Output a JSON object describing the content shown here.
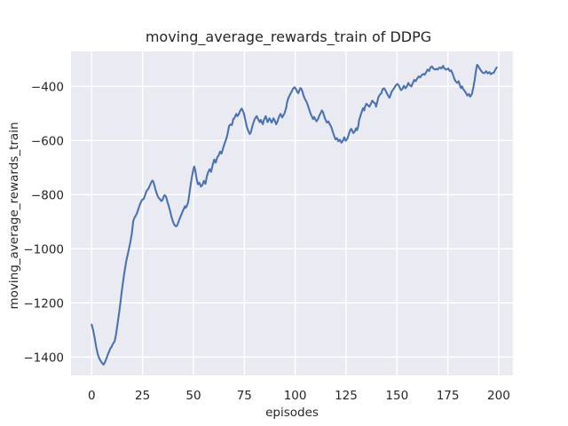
{
  "chart_data": {
    "type": "line",
    "title": "moving_average_rewards_train of DDPG",
    "xlabel": "episodes",
    "ylabel": "moving_average_rewards_train",
    "x_ticks": [
      0,
      25,
      50,
      75,
      100,
      125,
      150,
      175,
      200
    ],
    "x_tick_labels": [
      "0",
      "25",
      "50",
      "75",
      "100",
      "125",
      "150",
      "175",
      "200"
    ],
    "y_ticks": [
      -1400,
      -1200,
      -1000,
      -800,
      -600,
      -400
    ],
    "y_tick_labels": [
      "−1400",
      "−1200",
      "−1000",
      "−800",
      "−600",
      "−400"
    ],
    "xlim": [
      -10.16,
      207.0
    ],
    "ylim": [
      -1468,
      -271
    ],
    "grid": true,
    "legend": null,
    "series": [
      {
        "x": [
          0,
          0.7,
          1.5,
          2.2,
          3,
          3.7,
          4.4,
          5.1,
          5.8,
          6.5,
          7.3,
          8,
          8.7,
          9.2,
          9.8,
          10.2,
          10.9,
          11.3,
          12,
          12.8,
          13.7,
          14.9,
          15.9,
          16.9,
          18.1,
          19,
          19.8,
          20.4,
          21.1,
          21.8,
          22.6,
          23.3,
          24,
          24.7,
          25.5,
          26.2,
          26.9,
          27.7,
          28.4,
          28.8,
          29.4,
          29.8,
          30.3,
          30.8,
          31.3,
          32,
          32.7,
          33.5,
          34.2,
          34.9,
          35.3,
          35.8,
          36.4,
          36.8,
          37.1,
          37.8,
          38.6,
          39.3,
          40,
          40.7,
          41.4,
          41.9,
          42.5,
          42.9,
          43.6,
          44.4,
          44.8,
          45.4,
          45.8,
          46.2,
          46.8,
          47.3,
          47.7,
          48,
          48.4,
          48.7,
          49.2,
          49.6,
          50,
          50.4,
          50.9,
          51.5,
          52.2,
          52.9,
          53.7,
          54.4,
          55.1,
          55.9,
          56.6,
          57.3,
          58,
          58.7,
          59.5,
          60.2,
          60.9,
          61.7,
          62.4,
          63.1,
          63.8,
          64.6,
          65.3,
          66,
          66.7,
          67.5,
          68.2,
          68.9,
          69.6,
          70.1,
          70.7,
          71.1,
          71.6,
          72.2,
          72.9,
          73.7,
          74.2,
          74.8,
          75.3,
          75.8,
          76.2,
          76.8,
          77.7,
          78.3,
          78.7,
          79.1,
          79.7,
          80.1,
          80.6,
          81.1,
          81.6,
          82,
          82.6,
          83.1,
          83.5,
          84.1,
          84.5,
          85,
          85.5,
          86,
          86.4,
          87,
          87.4,
          87.9,
          88.4,
          88.9,
          89.3,
          89.9,
          90.3,
          90.7,
          91.3,
          91.8,
          92.2,
          92.8,
          93.2,
          93.6,
          94.2,
          94.7,
          95.1,
          95.6,
          96,
          96.7,
          97.4,
          98.2,
          98.9,
          99.6,
          100.3,
          101,
          101.5,
          102.1,
          102.5,
          103,
          103.6,
          104.1,
          104.7,
          105.5,
          106.2,
          106.9,
          107.6,
          108.3,
          108.8,
          109.3,
          109.8,
          110.5,
          111.2,
          111.9,
          112.7,
          113.1,
          113.7,
          114.1,
          114.9,
          115.6,
          116.3,
          117,
          117.8,
          118.5,
          119,
          119.8,
          120.5,
          121.2,
          121.9,
          122.7,
          123.4,
          124.1,
          124.8,
          125.6,
          126.3,
          127,
          127.5,
          128,
          128.5,
          129.2,
          129.9,
          130.4,
          131,
          131.4,
          132.1,
          132.8,
          133.3,
          133.9,
          134.3,
          135,
          135.8,
          136.5,
          137.2,
          137.9,
          138.6,
          139.4,
          139.7,
          140.1,
          140.8,
          141.5,
          142.3,
          143,
          143.7,
          144.4,
          145.1,
          145.9,
          146.3,
          146.9,
          147.3,
          148,
          148.8,
          149.5,
          150.2,
          151,
          151.5,
          152,
          152.7,
          153.4,
          154.2,
          154.9,
          155.6,
          156.3,
          157.1,
          157.8,
          158.5,
          159.2,
          160,
          160.7,
          161.4,
          162.1,
          162.9,
          163.6,
          164.3,
          165,
          165.8,
          166.5,
          167.2,
          167.9,
          168.7,
          169.4,
          170,
          170.6,
          171.2,
          171.8,
          172.7,
          173.2,
          174.1,
          175.2,
          175.9,
          176.6,
          177.4,
          178.1,
          178.8,
          179.6,
          180.3,
          181,
          181.4,
          182,
          182.4,
          183.2,
          183.9,
          184.6,
          185.3,
          186,
          186.8,
          187.5,
          188.2,
          188.8,
          189.4,
          190,
          190.7,
          191.5,
          192.2,
          193,
          193.8,
          194.6,
          195.4,
          196.1,
          196.8,
          197.6,
          198.2,
          199
        ],
        "y": [
          -1280,
          -1300,
          -1330,
          -1362,
          -1390,
          -1405,
          -1415,
          -1422,
          -1428,
          -1420,
          -1405,
          -1390,
          -1377,
          -1368,
          -1362,
          -1355,
          -1346,
          -1342,
          -1315,
          -1272,
          -1225,
          -1150,
          -1095,
          -1048,
          -1008,
          -975,
          -940,
          -898,
          -884,
          -876,
          -862,
          -845,
          -831,
          -820,
          -816,
          -803,
          -787,
          -780,
          -770,
          -763,
          -753,
          -748,
          -752,
          -765,
          -780,
          -797,
          -810,
          -816,
          -824,
          -819,
          -808,
          -802,
          -806,
          -814,
          -824,
          -841,
          -862,
          -884,
          -901,
          -912,
          -917,
          -915,
          -904,
          -895,
          -882,
          -868,
          -860,
          -851,
          -843,
          -849,
          -841,
          -830,
          -813,
          -797,
          -775,
          -759,
          -737,
          -722,
          -706,
          -696,
          -710,
          -738,
          -762,
          -756,
          -770,
          -764,
          -749,
          -760,
          -732,
          -716,
          -706,
          -716,
          -689,
          -670,
          -682,
          -662,
          -655,
          -641,
          -648,
          -628,
          -612,
          -596,
          -578,
          -546,
          -541,
          -543,
          -520,
          -518,
          -507,
          -502,
          -510,
          -504,
          -491,
          -482,
          -489,
          -500,
          -518,
          -534,
          -548,
          -562,
          -576,
          -567,
          -554,
          -543,
          -529,
          -521,
          -515,
          -510,
          -518,
          -524,
          -532,
          -524,
          -532,
          -540,
          -526,
          -518,
          -510,
          -521,
          -532,
          -524,
          -518,
          -526,
          -534,
          -526,
          -518,
          -526,
          -534,
          -540,
          -529,
          -518,
          -510,
          -502,
          -507,
          -515,
          -507,
          -500,
          -491,
          -478,
          -458,
          -442,
          -431,
          -420,
          -409,
          -403,
          -409,
          -420,
          -425,
          -414,
          -406,
          -409,
          -420,
          -434,
          -445,
          -456,
          -469,
          -485,
          -502,
          -513,
          -521,
          -513,
          -521,
          -529,
          -521,
          -507,
          -496,
          -489,
          -496,
          -507,
          -524,
          -534,
          -529,
          -540,
          -551,
          -568,
          -580,
          -596,
          -591,
          -603,
          -597,
          -608,
          -601,
          -588,
          -601,
          -594,
          -578,
          -563,
          -557,
          -563,
          -572,
          -567,
          -555,
          -562,
          -546,
          -525,
          -508,
          -492,
          -481,
          -489,
          -475,
          -464,
          -470,
          -475,
          -464,
          -453,
          -459,
          -464,
          -475,
          -464,
          -442,
          -431,
          -426,
          -410,
          -407,
          -415,
          -426,
          -437,
          -442,
          -431,
          -421,
          -413,
          -404,
          -396,
          -391,
          -398,
          -407,
          -414,
          -409,
          -398,
          -407,
          -400,
          -387,
          -396,
          -400,
          -387,
          -376,
          -381,
          -370,
          -363,
          -367,
          -359,
          -354,
          -357,
          -348,
          -338,
          -343,
          -330,
          -326,
          -334,
          -338,
          -335,
          -338,
          -332,
          -330,
          -334,
          -324,
          -333,
          -338,
          -334,
          -343,
          -341,
          -354,
          -370,
          -381,
          -387,
          -381,
          -398,
          -406,
          -400,
          -409,
          -416,
          -424,
          -434,
          -428,
          -438,
          -428,
          -405,
          -375,
          -342,
          -320,
          -326,
          -335,
          -344,
          -350,
          -351,
          -344,
          -352,
          -347,
          -355,
          -351,
          -350,
          -340,
          -330
        ]
      }
    ]
  },
  "colors": {
    "figure_bg": "#ffffff",
    "axes_bg": "#eaeaf2",
    "grid": "#ffffff",
    "line": "#4c72b0",
    "text": "#262626"
  }
}
